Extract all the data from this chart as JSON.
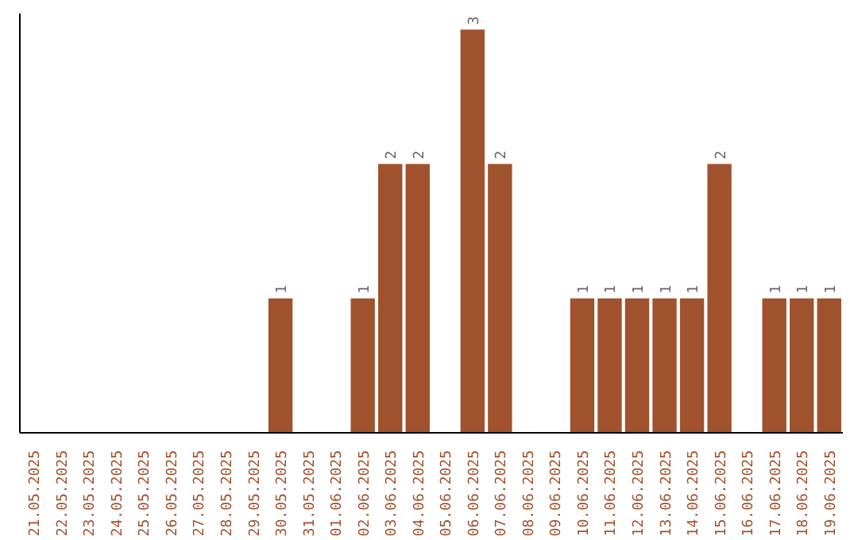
{
  "chart_data": {
    "type": "bar",
    "categories": [
      "21.05.2025",
      "22.05.2025",
      "23.05.2025",
      "24.05.2025",
      "25.05.2025",
      "26.05.2025",
      "27.05.2025",
      "28.05.2025",
      "29.05.2025",
      "30.05.2025",
      "31.05.2025",
      "01.06.2025",
      "02.06.2025",
      "03.06.2025",
      "04.06.2025",
      "05.06.2025",
      "06.06.2025",
      "07.06.2025",
      "08.06.2025",
      "09.06.2025",
      "10.06.2025",
      "11.06.2025",
      "12.06.2025",
      "13.06.2025",
      "14.06.2025",
      "15.06.2025",
      "16.06.2025",
      "17.06.2025",
      "18.06.2025",
      "19.06.2025"
    ],
    "values": [
      0,
      0,
      0,
      0,
      0,
      0,
      0,
      0,
      0,
      1,
      0,
      0,
      1,
      2,
      2,
      0,
      3,
      2,
      0,
      0,
      1,
      1,
      1,
      1,
      1,
      2,
      0,
      1,
      1,
      1
    ],
    "value_labels": [
      null,
      null,
      null,
      null,
      null,
      null,
      null,
      null,
      null,
      "1",
      null,
      null,
      "1",
      "2",
      "2",
      null,
      "3",
      "2",
      null,
      null,
      "1",
      "1",
      "1",
      "1",
      "1",
      "2",
      null,
      "1",
      "1",
      "1"
    ],
    "color": "#a0522d",
    "grid": false
  }
}
